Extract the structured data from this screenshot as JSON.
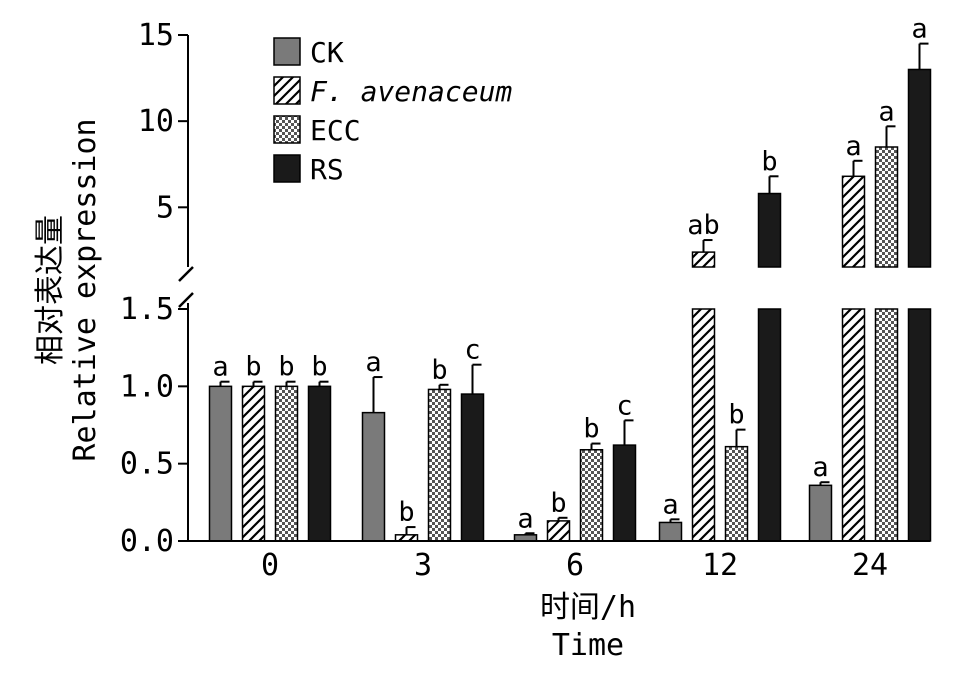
{
  "chart_data": {
    "type": "bar",
    "xlabel": "时间/h",
    "xlabel_en": "Time",
    "ylabel": "相对表达量",
    "ylabel_en": "Relative expression",
    "categories": [
      "0",
      "3",
      "6",
      "12",
      "24"
    ],
    "y_axis_break": true,
    "ylim_lower": [
      0,
      1.5
    ],
    "ylim_upper": [
      2,
      15
    ],
    "yticks_lower": [
      "0.0",
      "0.5",
      "1.0",
      "1.5"
    ],
    "yticks_upper": [
      "5",
      "10",
      "15"
    ],
    "legend_position": "top-left",
    "series": [
      {
        "name": "CK",
        "pattern": "solid-gray",
        "values": [
          1.0,
          0.83,
          0.04,
          0.12,
          0.36
        ],
        "errors": [
          0.03,
          0.23,
          0.01,
          0.02,
          0.02
        ],
        "labels": [
          "a",
          "a",
          "a",
          "a",
          "a"
        ]
      },
      {
        "name": "F. avenaceum",
        "pattern": "diagonal-hatch",
        "values": [
          1.0,
          0.04,
          0.13,
          2.4,
          6.8
        ],
        "errors": [
          0.03,
          0.05,
          0.02,
          0.7,
          0.9
        ],
        "labels": [
          "b",
          "b",
          "b",
          "ab",
          "a"
        ]
      },
      {
        "name": "ECC",
        "pattern": "dotted",
        "values": [
          1.0,
          0.98,
          0.59,
          0.61,
          8.5
        ],
        "errors": [
          0.03,
          0.03,
          0.04,
          0.11,
          1.2
        ],
        "labels": [
          "b",
          "b",
          "b",
          "b",
          "a"
        ]
      },
      {
        "name": "RS",
        "pattern": "solid-black",
        "values": [
          1.0,
          0.95,
          0.62,
          5.8,
          13.0
        ],
        "errors": [
          0.03,
          0.19,
          0.16,
          1.0,
          1.5
        ],
        "labels": [
          "b",
          "c",
          "c",
          "b",
          "a"
        ]
      }
    ]
  }
}
